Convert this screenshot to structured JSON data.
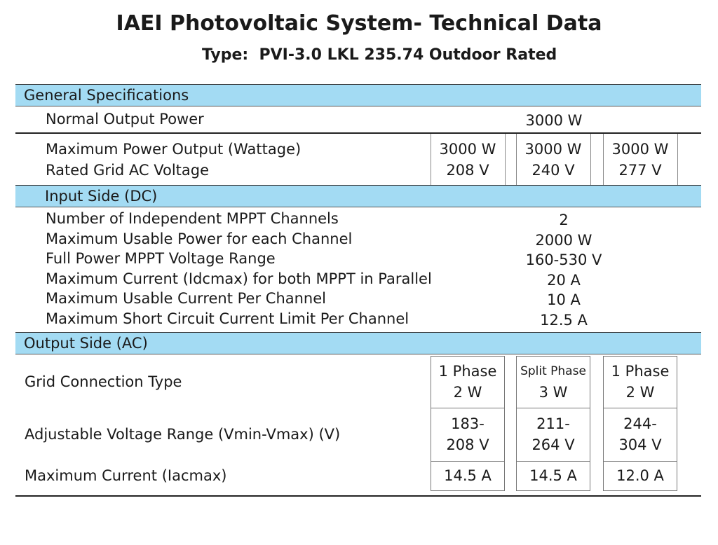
{
  "header": {
    "title": "IAEI Photovoltaic System- Technical Data",
    "subtitle": "Type:  PVI-3.0 LKL 235.74 Outdoor Rated"
  },
  "general": {
    "title": "General Specifications",
    "normal_output": {
      "label": "Normal Output Power",
      "value": "3000 W"
    },
    "rows": [
      {
        "label": "Maximum Power Output (Wattage)",
        "values": [
          "3000 W",
          "3000 W",
          "3000 W"
        ]
      },
      {
        "label": "Rated Grid AC Voltage",
        "values": [
          "208 V",
          "240 V",
          "277 V"
        ]
      }
    ]
  },
  "input": {
    "title": "Input Side (DC)",
    "rows": [
      {
        "label": "Number of Independent MPPT Channels",
        "value": "2"
      },
      {
        "label": "Maximum Usable Power for each Channel",
        "value": "2000 W"
      },
      {
        "label": "Full Power MPPT Voltage Range",
        "value": "160-530 V"
      },
      {
        "label": "Maximum Current (Idcmax) for both MPPT in Parallel",
        "value": "20 A"
      },
      {
        "label": "Maximum Usable Current Per Channel",
        "value": "10 A"
      },
      {
        "label": "Maximum Short Circuit Current Limit Per Channel",
        "value": "12.5 A"
      }
    ]
  },
  "output": {
    "title": "Output Side (AC)",
    "rows": [
      {
        "label": "Grid Connection Type",
        "cells": [
          [
            "1 Phase",
            "2 W"
          ],
          [
            "Split Phase",
            "3 W"
          ],
          [
            "1 Phase",
            "2 W"
          ]
        ]
      },
      {
        "label": "Adjustable Voltage Range (Vmin-Vmax) (V)",
        "cells": [
          [
            "183-",
            "208 V"
          ],
          [
            "211-",
            "264 V"
          ],
          [
            "244-",
            "304 V"
          ]
        ]
      },
      {
        "label": "Maximum Current (Iacmax)",
        "cells": [
          [
            "14.5 A"
          ],
          [
            "14.5 A"
          ],
          [
            "12.0 A"
          ]
        ]
      }
    ]
  }
}
